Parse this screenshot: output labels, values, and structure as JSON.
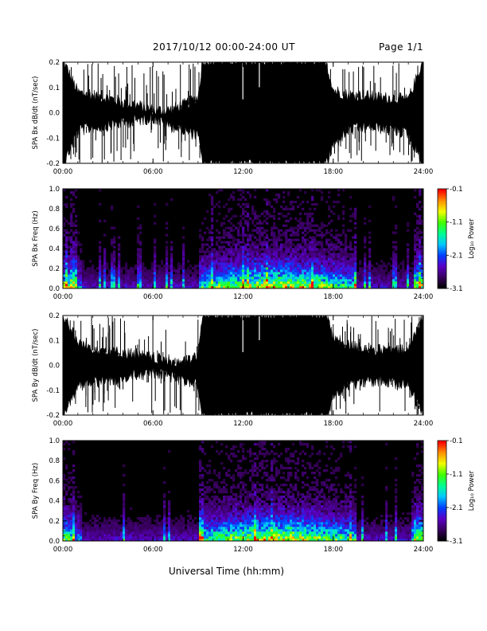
{
  "header": {
    "title": "2017/10/12  00:00-24:00 UT",
    "page": "Page 1/1"
  },
  "x_axis_title": "Universal Time (hh:mm)",
  "colorbar": {
    "label": "Log₁₀ Power",
    "ticks": [
      "-0.1",
      "-1.1",
      "-2.1",
      "-3.1"
    ],
    "range": [
      -3.1,
      -0.1
    ],
    "colormap": [
      "#000000",
      "#3a0060",
      "#5a00c8",
      "#0040ff",
      "#00c8ff",
      "#00ff90",
      "#40ff00",
      "#f0ff00",
      "#ff9000",
      "#ff0000"
    ]
  },
  "chart_data": [
    {
      "type": "line",
      "ylabel": "SPA Bx dB/dt (nT/sec)",
      "xlim": [
        "00:00",
        "24:00"
      ],
      "ylim": [
        -0.2,
        0.2
      ],
      "xticks": [
        "00:00",
        "06:00",
        "12:00",
        "18:00",
        "24:00"
      ],
      "yticks": [
        "-0.2",
        "-0.1",
        "0.0",
        "0.1",
        "0.2"
      ],
      "envelope": {
        "hour": [
          0,
          1,
          2,
          3,
          4,
          5,
          6,
          7,
          8,
          9,
          9.3,
          10,
          11,
          12,
          13,
          14,
          15,
          16,
          17,
          17.5,
          18,
          19,
          20,
          21,
          22,
          23,
          24
        ],
        "upper": [
          0.2,
          0.07,
          0.06,
          0.05,
          0.03,
          0.02,
          0.0,
          0.0,
          0.02,
          0.05,
          0.2,
          0.2,
          0.2,
          0.2,
          0.2,
          0.2,
          0.2,
          0.2,
          0.2,
          0.2,
          0.08,
          0.06,
          0.06,
          0.05,
          0.05,
          0.04,
          0.2
        ],
        "lower": [
          -0.2,
          -0.06,
          -0.05,
          -0.04,
          -0.03,
          -0.02,
          -0.01,
          -0.04,
          -0.06,
          -0.08,
          -0.2,
          -0.2,
          -0.2,
          -0.2,
          -0.2,
          -0.2,
          -0.2,
          -0.2,
          -0.2,
          -0.2,
          -0.12,
          -0.06,
          -0.05,
          -0.05,
          -0.06,
          -0.07,
          -0.2
        ]
      }
    },
    {
      "type": "heatmap",
      "ylabel": "SPA Bx Freq (Hz)",
      "xlim": [
        "00:00",
        "24:00"
      ],
      "ylim": [
        0.0,
        1.0
      ],
      "xticks": [
        "00:00",
        "06:00",
        "12:00",
        "18:00",
        "24:00"
      ],
      "yticks": [
        "0.0",
        "0.2",
        "0.4",
        "0.6",
        "0.8",
        "1.0"
      ],
      "zlim": [
        -3.1,
        -0.1
      ]
    },
    {
      "type": "line",
      "ylabel": "SPA By dB/dt (nT/sec)",
      "xlim": [
        "00:00",
        "24:00"
      ],
      "ylim": [
        -0.2,
        0.2
      ],
      "xticks": [
        "00:00",
        "06:00",
        "12:00",
        "18:00",
        "24:00"
      ],
      "yticks": [
        "-0.2",
        "-0.1",
        "0.0",
        "0.1",
        "0.2"
      ],
      "envelope": {
        "hour": [
          0,
          1,
          2,
          3,
          4,
          5,
          6,
          7,
          8,
          9,
          9.3,
          10,
          11,
          12,
          13,
          14,
          15,
          16,
          17,
          17.5,
          18,
          19,
          20,
          21,
          22,
          23,
          24
        ],
        "upper": [
          0.2,
          0.08,
          0.06,
          0.05,
          0.04,
          0.03,
          0.02,
          0.01,
          0.0,
          0.03,
          0.2,
          0.2,
          0.2,
          0.2,
          0.2,
          0.2,
          0.2,
          0.2,
          0.2,
          0.2,
          0.1,
          0.07,
          0.06,
          0.05,
          0.05,
          0.05,
          0.2
        ],
        "lower": [
          -0.2,
          -0.07,
          -0.06,
          -0.05,
          -0.04,
          -0.03,
          -0.02,
          -0.03,
          -0.05,
          -0.07,
          -0.2,
          -0.2,
          -0.2,
          -0.2,
          -0.2,
          -0.2,
          -0.2,
          -0.2,
          -0.2,
          -0.2,
          -0.12,
          -0.07,
          -0.06,
          -0.05,
          -0.06,
          -0.07,
          -0.2
        ]
      }
    },
    {
      "type": "heatmap",
      "ylabel": "SPA By Freq (Hz)",
      "xlim": [
        "00:00",
        "24:00"
      ],
      "ylim": [
        0.0,
        1.0
      ],
      "xticks": [
        "00:00",
        "06:00",
        "12:00",
        "18:00",
        "24:00"
      ],
      "yticks": [
        "0.0",
        "0.2",
        "0.4",
        "0.6",
        "0.8",
        "1.0"
      ],
      "zlim": [
        -3.1,
        -0.1
      ]
    }
  ]
}
